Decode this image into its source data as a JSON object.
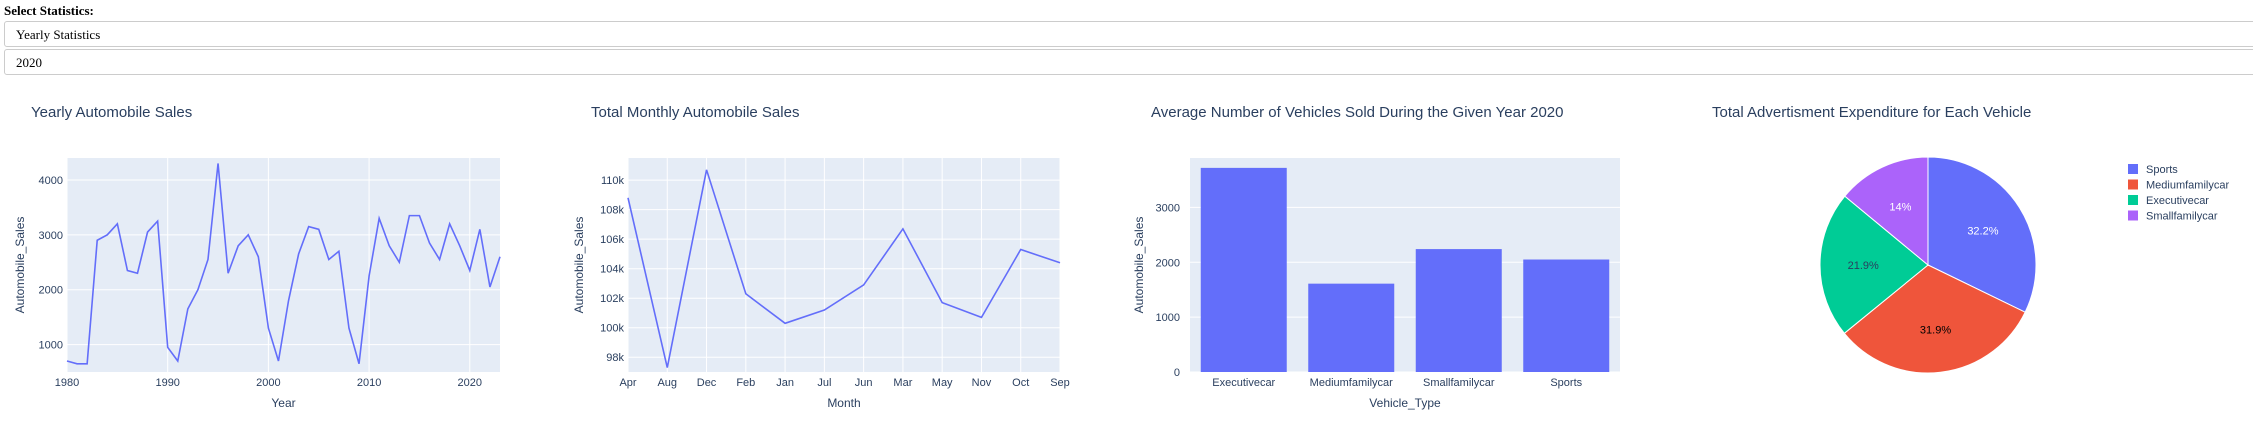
{
  "controls": {
    "select_label": "Select Statistics:",
    "statistics_value": "Yearly Statistics",
    "year_value": "2020"
  },
  "colors": {
    "line": "#636efa",
    "bar": "#636efa",
    "plot_bg": "#e5ecf6",
    "text": "#2a3f5f",
    "pie": [
      "#636efa",
      "#ef553b",
      "#00cc96",
      "#ab63fa"
    ]
  },
  "chart_data": [
    {
      "type": "line",
      "title": "Yearly Automobile Sales",
      "xlabel": "Year",
      "ylabel": "Automobile_Sales",
      "xlim": [
        1980,
        2023
      ],
      "ylim": [
        500,
        4400
      ],
      "xticks": [
        1980,
        1990,
        2000,
        2010,
        2020
      ],
      "yticks": [
        1000,
        2000,
        3000,
        4000
      ],
      "x": [
        1980,
        1981,
        1982,
        1983,
        1984,
        1985,
        1986,
        1987,
        1988,
        1989,
        1990,
        1991,
        1992,
        1993,
        1994,
        1995,
        1996,
        1997,
        1998,
        1999,
        2000,
        2001,
        2002,
        2003,
        2004,
        2005,
        2006,
        2007,
        2008,
        2009,
        2010,
        2011,
        2012,
        2013,
        2014,
        2015,
        2016,
        2017,
        2018,
        2019,
        2020,
        2021,
        2022,
        2023
      ],
      "y": [
        700,
        650,
        650,
        2900,
        3000,
        3200,
        2350,
        2300,
        3050,
        3250,
        950,
        700,
        1650,
        2000,
        2550,
        4300,
        2300,
        2800,
        3000,
        2600,
        1300,
        700,
        1800,
        2650,
        3150,
        3100,
        2550,
        2700,
        1300,
        650,
        2250,
        3300,
        2800,
        2500,
        3350,
        3350,
        2850,
        2550,
        3200,
        2800,
        2350,
        3100,
        2050,
        2600
      ]
    },
    {
      "type": "line",
      "title": "Total Monthly Automobile Sales",
      "xlabel": "Month",
      "ylabel": "Automobile_Sales",
      "ylim": [
        97000,
        111500
      ],
      "yticks": [
        98000,
        100000,
        102000,
        104000,
        106000,
        108000,
        110000
      ],
      "ytick_labels": [
        "98k",
        "100k",
        "102k",
        "104k",
        "106k",
        "108k",
        "110k"
      ],
      "categories": [
        "Apr",
        "Aug",
        "Dec",
        "Feb",
        "Jan",
        "Jul",
        "Jun",
        "Mar",
        "May",
        "Nov",
        "Oct",
        "Sep"
      ],
      "values": [
        108800,
        97300,
        110700,
        102300,
        100300,
        101200,
        102900,
        106700,
        101700,
        100700,
        105300,
        104400
      ]
    },
    {
      "type": "bar",
      "title": "Average Number of Vehicles Sold During the Given Year 2020",
      "xlabel": "Vehicle_Type",
      "ylabel": "Automobile_Sales",
      "ylim": [
        0,
        3900
      ],
      "yticks": [
        0,
        1000,
        2000,
        3000
      ],
      "categories": [
        "Executivecar",
        "Mediumfamilycar",
        "Smallfamilycar",
        "Sports"
      ],
      "values": [
        3720,
        1610,
        2240,
        2050
      ]
    },
    {
      "type": "pie",
      "title": "Total Advertisment Expenditure for Each Vehicle",
      "labels": [
        "Sports",
        "Mediumfamilycar",
        "Executivecar",
        "Smallfamilycar"
      ],
      "values": [
        32.2,
        31.9,
        21.9,
        14
      ],
      "value_labels": [
        "32.2%",
        "31.9%",
        "21.9%",
        "14%"
      ],
      "legend": "right"
    }
  ]
}
